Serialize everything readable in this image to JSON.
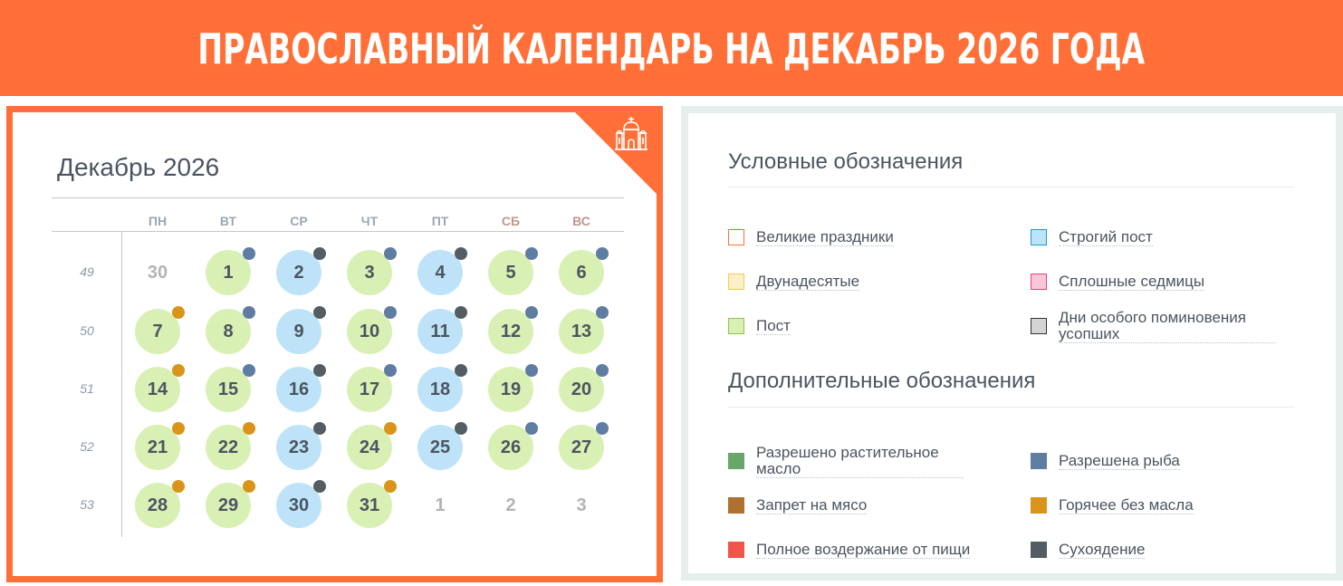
{
  "banner": {
    "title": "ПРАВОСЛАВНЫЙ КАЛЕНДАРЬ НА ДЕКАБРЬ 2026 ГОДА"
  },
  "colors": {
    "accent": "#ff6f37",
    "post": "#d9f0b4",
    "strict_post": "#bee3f8",
    "fish_allowed": "#5f7ca3",
    "hot_no_oil": "#d9951a",
    "dry_eating": "#545d63",
    "oil_allowed": "#6aa56a",
    "no_meat": "#b07030",
    "full_abstinence": "#f0554a"
  },
  "calendar": {
    "title": "Декабрь 2026",
    "corner_icon": "church-icon",
    "weekdays": [
      "ПН",
      "ВТ",
      "СР",
      "ЧТ",
      "ПТ",
      "СБ",
      "ВС"
    ],
    "weeks": [
      {
        "number": "49",
        "days": [
          {
            "d": "30",
            "type": "other",
            "dot": null
          },
          {
            "d": "1",
            "type": "post",
            "dot": "fish"
          },
          {
            "d": "2",
            "type": "strict",
            "dot": "dry"
          },
          {
            "d": "3",
            "type": "post",
            "dot": "fish"
          },
          {
            "d": "4",
            "type": "strict",
            "dot": "dry"
          },
          {
            "d": "5",
            "type": "post",
            "dot": "fish"
          },
          {
            "d": "6",
            "type": "post",
            "dot": "fish"
          }
        ]
      },
      {
        "number": "50",
        "days": [
          {
            "d": "7",
            "type": "post",
            "dot": "hot"
          },
          {
            "d": "8",
            "type": "post",
            "dot": "fish"
          },
          {
            "d": "9",
            "type": "strict",
            "dot": "dry"
          },
          {
            "d": "10",
            "type": "post",
            "dot": "fish"
          },
          {
            "d": "11",
            "type": "strict",
            "dot": "dry"
          },
          {
            "d": "12",
            "type": "post",
            "dot": "fish"
          },
          {
            "d": "13",
            "type": "post",
            "dot": "fish"
          }
        ]
      },
      {
        "number": "51",
        "days": [
          {
            "d": "14",
            "type": "post",
            "dot": "hot"
          },
          {
            "d": "15",
            "type": "post",
            "dot": "fish"
          },
          {
            "d": "16",
            "type": "strict",
            "dot": "dry"
          },
          {
            "d": "17",
            "type": "post",
            "dot": "fish"
          },
          {
            "d": "18",
            "type": "strict",
            "dot": "dry"
          },
          {
            "d": "19",
            "type": "post",
            "dot": "fish"
          },
          {
            "d": "20",
            "type": "post",
            "dot": "fish"
          }
        ]
      },
      {
        "number": "52",
        "days": [
          {
            "d": "21",
            "type": "post",
            "dot": "hot"
          },
          {
            "d": "22",
            "type": "post",
            "dot": "hot"
          },
          {
            "d": "23",
            "type": "strict",
            "dot": "dry"
          },
          {
            "d": "24",
            "type": "post",
            "dot": "hot"
          },
          {
            "d": "25",
            "type": "strict",
            "dot": "dry"
          },
          {
            "d": "26",
            "type": "post",
            "dot": "fish"
          },
          {
            "d": "27",
            "type": "post",
            "dot": "fish"
          }
        ]
      },
      {
        "number": "53",
        "days": [
          {
            "d": "28",
            "type": "post",
            "dot": "hot"
          },
          {
            "d": "29",
            "type": "post",
            "dot": "hot"
          },
          {
            "d": "30",
            "type": "strict",
            "dot": "dry"
          },
          {
            "d": "31",
            "type": "post",
            "dot": "hot"
          },
          {
            "d": "1",
            "type": "other",
            "dot": null
          },
          {
            "d": "2",
            "type": "other",
            "dot": null
          },
          {
            "d": "3",
            "type": "other",
            "dot": null
          }
        ]
      }
    ]
  },
  "legend": {
    "main_title": "Условные обозначения",
    "main_items": [
      {
        "label": "Великие праздники",
        "fill": "#ffffff",
        "border": "#ff6f37"
      },
      {
        "label": "Строгий пост",
        "fill": "#bee3f8",
        "border": "#1a9ad6"
      },
      {
        "label": "Двунадесятые",
        "fill": "#fdefc6",
        "border": "#f6cc4f"
      },
      {
        "label": "Сплошные седмицы",
        "fill": "#f9c6d6",
        "border": "#e0477a"
      },
      {
        "label": "Пост",
        "fill": "#d9f0b4",
        "border": "#8ec34a"
      },
      {
        "label": "Дни особого поминовения усопших",
        "fill": "#d4d4d4",
        "border": "#333333"
      }
    ],
    "extra_title": "Дополнительные обозначения",
    "extra_items": [
      {
        "label": "Разрешено растительное масло",
        "color": "#6aa56a"
      },
      {
        "label": "Разрешена рыба",
        "color": "#5f7ca3"
      },
      {
        "label": "Запрет на мясо",
        "color": "#b07030"
      },
      {
        "label": "Горячее без масла",
        "color": "#d9951a"
      },
      {
        "label": "Полное воздержание от пищи",
        "color": "#f0554a"
      },
      {
        "label": "Сухоядение",
        "color": "#545d63"
      }
    ]
  }
}
